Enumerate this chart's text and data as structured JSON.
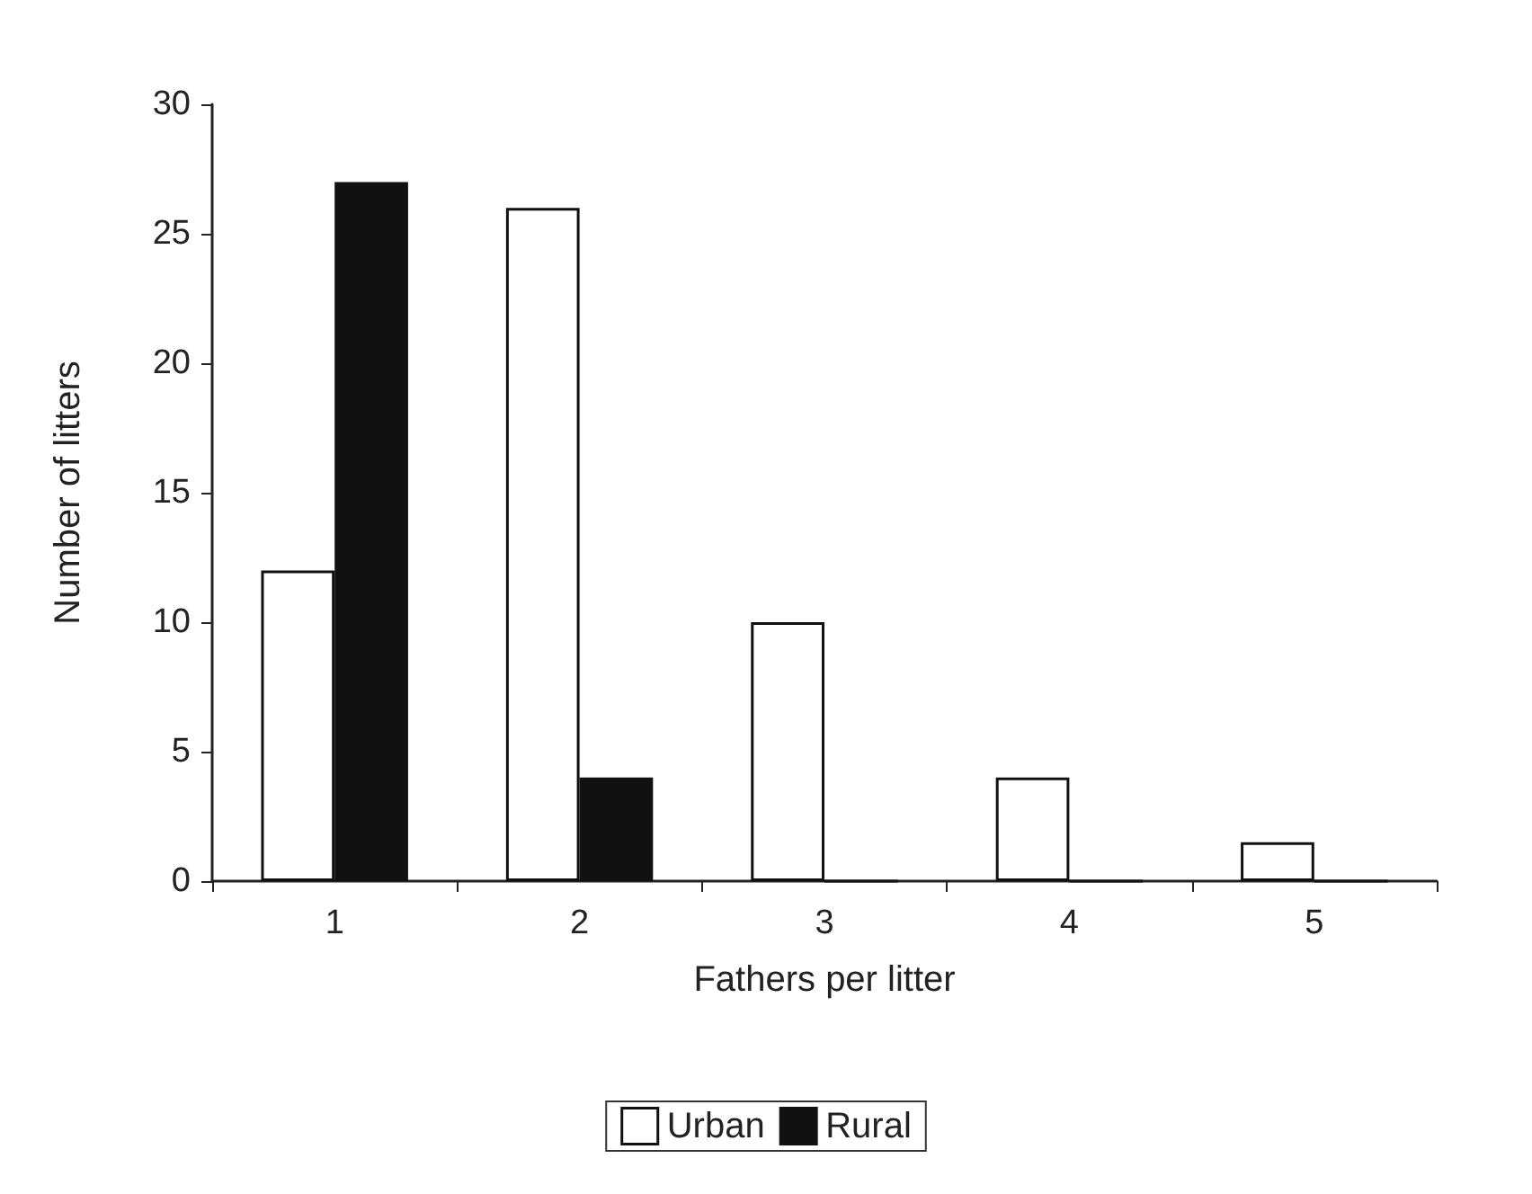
{
  "chart_data": {
    "type": "bar",
    "xlabel": "Fathers per litter",
    "ylabel": "Number of litters",
    "categories": [
      "1",
      "2",
      "3",
      "4",
      "5"
    ],
    "series": [
      {
        "name": "Urban",
        "color": "#ffffff",
        "values": [
          12,
          26,
          10,
          4,
          1.5
        ]
      },
      {
        "name": "Rural",
        "color": "#111111",
        "values": [
          27,
          4,
          0,
          0,
          0
        ]
      }
    ],
    "ylim": [
      0,
      30
    ],
    "yticks": [
      0,
      5,
      10,
      15,
      20,
      25,
      30
    ],
    "grid": false,
    "legend": "bottom"
  }
}
